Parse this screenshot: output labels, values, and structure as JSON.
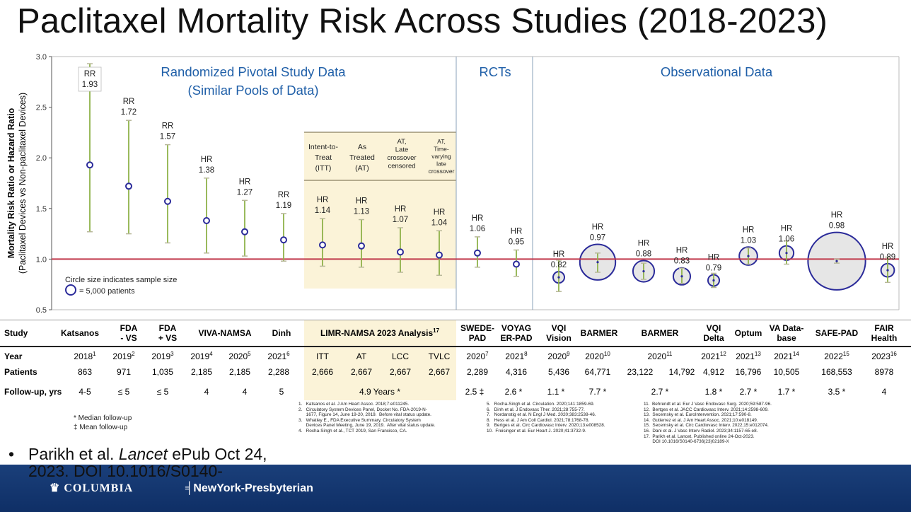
{
  "title": "Paclitaxel Mortality Risk Across Studies (2018-2023)",
  "chart_data": {
    "type": "scatter",
    "ylabel": "Mortality Risk Ratio or Hazard Ratio",
    "ylabel2": "(Paclitaxel Devices vs Non-paclitaxel Devices)",
    "ylim": [
      0.5,
      3.0
    ],
    "yticks": [
      "0.5",
      "1.0",
      "1.5",
      "2.0",
      "2.5",
      "3.0"
    ],
    "reference_line": 1.0,
    "sections": [
      {
        "label1": "Randomized Pivotal Study Data",
        "label2": "(Similar Pools of Data)"
      },
      {
        "label1": "RCTs",
        "label2": ""
      },
      {
        "label1": "Observational Data",
        "label2": ""
      }
    ],
    "limr_headers": [
      "Intent-to-|Treat|(ITT)",
      "As|Treated|(AT)",
      "AT,|Late|crossover|censored",
      "AT,|Time-|varying|late|crossover"
    ],
    "points": [
      {
        "metric": "RR",
        "label": "1.93",
        "value": 1.93,
        "low": 1.27,
        "high": 2.93,
        "bubble": false,
        "boxed": true
      },
      {
        "metric": "RR",
        "label": "1.72",
        "value": 1.72,
        "low": 1.25,
        "high": 2.37,
        "bubble": false
      },
      {
        "metric": "RR",
        "label": "1.57",
        "value": 1.57,
        "low": 1.16,
        "high": 2.13,
        "bubble": false
      },
      {
        "metric": "HR",
        "label": "1.38",
        "value": 1.38,
        "low": 1.06,
        "high": 1.8,
        "bubble": false
      },
      {
        "metric": "HR",
        "label": "1.27",
        "value": 1.27,
        "low": 1.03,
        "high": 1.58,
        "bubble": false
      },
      {
        "metric": "RR",
        "label": "1.19",
        "value": 1.19,
        "low": 0.98,
        "high": 1.45,
        "bubble": false
      },
      {
        "metric": "HR",
        "label": "1.14",
        "value": 1.14,
        "low": 0.93,
        "high": 1.4,
        "bubble": false
      },
      {
        "metric": "HR",
        "label": "1.13",
        "value": 1.13,
        "low": 0.92,
        "high": 1.39,
        "bubble": false
      },
      {
        "metric": "HR",
        "label": "1.07",
        "value": 1.07,
        "low": 0.87,
        "high": 1.31,
        "bubble": false
      },
      {
        "metric": "HR",
        "label": "1.04",
        "value": 1.04,
        "low": 0.84,
        "high": 1.28,
        "bubble": false
      },
      {
        "metric": "HR",
        "label": "1.06",
        "value": 1.06,
        "low": 0.92,
        "high": 1.22,
        "bubble": false
      },
      {
        "metric": "HR",
        "label": "0.95",
        "value": 0.95,
        "low": 0.83,
        "high": 1.09,
        "bubble": false
      },
      {
        "metric": "HR",
        "label": "0.82",
        "value": 0.82,
        "low": 0.68,
        "high": 0.99,
        "bubble": true,
        "patients": 5436
      },
      {
        "metric": "HR",
        "label": "0.97",
        "value": 0.97,
        "low": 0.87,
        "high": 1.06,
        "bubble": true,
        "patients": 64771
      },
      {
        "metric": "HR",
        "label": "0.88",
        "value": 0.88,
        "low": 0.8,
        "high": 0.96,
        "bubble": true,
        "patients": 23122
      },
      {
        "metric": "HR",
        "label": "0.83",
        "value": 0.83,
        "low": 0.76,
        "high": 0.91,
        "bubble": true,
        "patients": 14792
      },
      {
        "metric": "HR",
        "label": "0.79",
        "value": 0.79,
        "low": 0.72,
        "high": 0.86,
        "bubble": true,
        "patients": 4912
      },
      {
        "metric": "HR",
        "label": "1.03",
        "value": 1.03,
        "low": 0.95,
        "high": 1.11,
        "bubble": true,
        "patients": 16796
      },
      {
        "metric": "HR",
        "label": "1.06",
        "value": 1.06,
        "low": 0.95,
        "high": 1.18,
        "bubble": true,
        "patients": 10505
      },
      {
        "metric": "HR",
        "label": "0.98",
        "value": 0.98,
        "low": 0.96,
        "high": 1.0,
        "bubble": true,
        "patients": 168553
      },
      {
        "metric": "HR",
        "label": "0.89",
        "value": 0.89,
        "low": 0.77,
        "high": 1.02,
        "bubble": true,
        "patients": 8978
      }
    ],
    "legend_note": "Circle size indicates sample size",
    "legend_key": "= 5,000 patients"
  },
  "table": {
    "row_labels": {
      "study": "Study",
      "year": "Year",
      "patients": "Patients",
      "followup": "Follow-up, yrs"
    },
    "studies": [
      {
        "name": "Katsanos"
      },
      {
        "name": "FDA|- VS"
      },
      {
        "name": "FDA|+ VS"
      },
      {
        "name": "VIVA-NAMSA"
      },
      {
        "name": "Dinh"
      },
      {
        "name": "LIMR-NAMSA 2023 Analysis",
        "sup": "17"
      },
      {
        "name": "SWEDE-|PAD"
      },
      {
        "name": "VOYAG|ER-PAD"
      },
      {
        "name": "VQI|Vision"
      },
      {
        "name": "BARMER"
      },
      {
        "name": "BARMER"
      },
      {
        "name": "VQI|Delta"
      },
      {
        "name": "Optum"
      },
      {
        "name": "VA Data-|base"
      },
      {
        "name": "SAFE-PAD"
      },
      {
        "name": "FAIR|Health"
      }
    ],
    "limr_subcols": [
      "ITT",
      "AT",
      "LCC",
      "TVLC"
    ],
    "years": [
      {
        "y": "2018",
        "s": "1"
      },
      {
        "y": "2019",
        "s": "2"
      },
      {
        "y": "2019",
        "s": "3"
      },
      {
        "y": "2019",
        "s": "4"
      },
      {
        "y": "2020",
        "s": "5"
      },
      {
        "y": "2021",
        "s": "6"
      },
      {
        "y": "ITT",
        "s": ""
      },
      {
        "y": "AT",
        "s": ""
      },
      {
        "y": "LCC",
        "s": ""
      },
      {
        "y": "TVLC",
        "s": ""
      },
      {
        "y": "2020",
        "s": "7"
      },
      {
        "y": "2021",
        "s": "8"
      },
      {
        "y": "2020",
        "s": "9"
      },
      {
        "y": "2020",
        "s": "10"
      },
      {
        "y": "2020",
        "s": "11"
      },
      {
        "y": "2021",
        "s": "12"
      },
      {
        "y": "2021",
        "s": "13"
      },
      {
        "y": "2021",
        "s": "14"
      },
      {
        "y": "2022",
        "s": "15"
      },
      {
        "y": "2023",
        "s": "16"
      }
    ],
    "patients": [
      "863",
      "971",
      "1,035",
      "2,185",
      "2,185",
      "2,288",
      "2,666",
      "2,667",
      "2,667",
      "2,667",
      "2,289",
      "4,316",
      "5,436",
      "64,771",
      "23,122",
      "14,792",
      "4,912",
      "16,796",
      "10,505",
      "168,553",
      "8978"
    ],
    "followup": [
      "4-5",
      "≤ 5",
      "≤ 5",
      "4",
      "4",
      "5",
      "4.9 Years *",
      "2.5 ‡",
      "2.6 *",
      "1.1 *",
      "7.7 *",
      "2.7 *",
      "1.8 *",
      "2.7 *",
      "1.7 *",
      "3.5 *",
      "4"
    ],
    "notes": [
      "* Median follow-up",
      "‡ Mean follow-up"
    ]
  },
  "references": [
    "1.   Katsanos et al. J Am Heart Assoc. 2018;7:e011245.\n2.   Circulatory System Devices Panel, Docket No. FDA-2019-N-\n      1677, Figure 14, June 19-20, 2019.  Before vital status update.\n3.   Whatley E., FDA Executive Summary, Circulatory System\n      Devices Panel Meeting, June 19, 2019.  After vital status update.\n4.   Rocha-Singh et al., TCT 2019, San Francisco, CA.",
    "5.   Rocha-Singh et al. Circulation. 2020;141:1859-69.\n6.   Dinh et al. J Endovasc Ther. 2021;28:755-77.\n7.   Nordanstig et al. N Engl J Med. 2020;383:2538-46.\n8.   Hess et al. J Am Coll Cardiol. 2021;78:1768-78.\n9.   Bertges et al. Circ Cardiovasc Interv. 2020;13:e008528.\n10.  Freisinger et al. Eur Heart J. 2020;41:3732-9.",
    "11.  Behrendt et al. Eur J Vasc Endovasc Surg. 2020;59:587-96.\n12.  Bertges et al. JACC Cardiovasc Interv. 2021;14:2598-609.\n13.  Secemsky et al. EuroIntervention. 2021;17:590-8.\n14.  Gutierrez et al. J Am Heart Assoc. 2021;10:e018149.\n15.  Secemsky et al. Circ Cardiovasc Interv. 2022;15:e012074.\n16.  Dani et al. J Vasc Interv Radiol. 2023;34:1157-65 e8.\n17.  Parikh et al. Lancet. Published online 24-Oct-2023.\n       DOI 10.1016/S0140-6736(23)02189-X"
  ],
  "citation": {
    "bullet": "•",
    "prefix": "Parikh et al. ",
    "journal": "Lancet",
    "suffix": " ePub Oct 24, 2023. DOI 10.1016/S0140-"
  },
  "footer": {
    "left_logo": "COLUMBIA",
    "right_logo": "NewYork-Presbyterian"
  },
  "colors": {
    "accent_blue": "#1f5fa8",
    "marker": "#2b2b9a",
    "whisker": "#8fb24a",
    "ref_line": "#c0394b",
    "limr_bg": "#fbf3d8",
    "footer": "#12336b"
  }
}
